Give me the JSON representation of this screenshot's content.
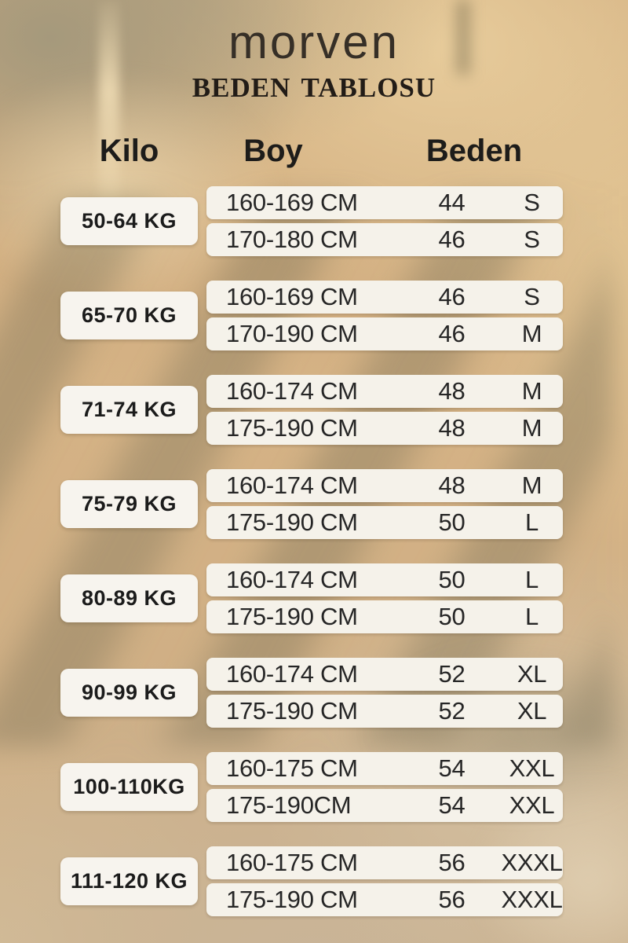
{
  "brand": "morven",
  "title": "BEDEN TABLOSU",
  "columns": {
    "kilo": "Kilo",
    "boy": "Boy",
    "beden": "Beden"
  },
  "table": {
    "groups": [
      {
        "kilo": "50-64 KG",
        "rows": [
          {
            "boy": "160-169 CM",
            "num": "44",
            "size": "S"
          },
          {
            "boy": "170-180 CM",
            "num": "46",
            "size": "S"
          }
        ]
      },
      {
        "kilo": "65-70 KG",
        "rows": [
          {
            "boy": "160-169 CM",
            "num": "46",
            "size": "S"
          },
          {
            "boy": "170-190 CM",
            "num": "46",
            "size": "M"
          }
        ]
      },
      {
        "kilo": "71-74 KG",
        "rows": [
          {
            "boy": "160-174 CM",
            "num": "48",
            "size": "M"
          },
          {
            "boy": "175-190 CM",
            "num": "48",
            "size": "M"
          }
        ]
      },
      {
        "kilo": "75-79 KG",
        "rows": [
          {
            "boy": "160-174 CM",
            "num": "48",
            "size": "M"
          },
          {
            "boy": "175-190 CM",
            "num": "50",
            "size": "L"
          }
        ]
      },
      {
        "kilo": "80-89 KG",
        "rows": [
          {
            "boy": "160-174 CM",
            "num": "50",
            "size": "L"
          },
          {
            "boy": "175-190 CM",
            "num": "50",
            "size": "L"
          }
        ]
      },
      {
        "kilo": "90-99 KG",
        "rows": [
          {
            "boy": "160-174 CM",
            "num": "52",
            "size": "XL"
          },
          {
            "boy": "175-190 CM",
            "num": "52",
            "size": "XL"
          }
        ]
      },
      {
        "kilo": "100-110KG",
        "rows": [
          {
            "boy": "160-175 CM",
            "num": "54",
            "size": "XXL"
          },
          {
            "boy": "175-190CM",
            "num": "54",
            "size": "XXL"
          }
        ]
      },
      {
        "kilo": "111-120 KG",
        "rows": [
          {
            "boy": "160-175 CM",
            "num": "56",
            "size": "XXXL"
          },
          {
            "boy": "175-190 CM",
            "num": "56",
            "size": "XXXL"
          }
        ]
      }
    ]
  },
  "colors": {
    "background_tan": "#d5b284",
    "background_sage": "#a39878",
    "card_background": "#f5f2ea",
    "text_dark": "#222222",
    "brand_text": "#362f27"
  },
  "chart_data": {
    "type": "table",
    "title": "BEDEN TABLOSU",
    "brand": "morven",
    "columns": [
      "Kilo",
      "Boy",
      "Beden (number)",
      "Beden (letter)"
    ],
    "rows": [
      [
        "50-64 KG",
        "160-169 CM",
        44,
        "S"
      ],
      [
        "50-64 KG",
        "170-180 CM",
        46,
        "S"
      ],
      [
        "65-70 KG",
        "160-169 CM",
        46,
        "S"
      ],
      [
        "65-70 KG",
        "170-190 CM",
        46,
        "M"
      ],
      [
        "71-74 KG",
        "160-174 CM",
        48,
        "M"
      ],
      [
        "71-74 KG",
        "175-190 CM",
        48,
        "M"
      ],
      [
        "75-79 KG",
        "160-174 CM",
        48,
        "M"
      ],
      [
        "75-79 KG",
        "175-190 CM",
        50,
        "L"
      ],
      [
        "80-89 KG",
        "160-174 CM",
        50,
        "L"
      ],
      [
        "80-89 KG",
        "175-190 CM",
        50,
        "L"
      ],
      [
        "90-99 KG",
        "160-174 CM",
        52,
        "XL"
      ],
      [
        "90-99 KG",
        "175-190 CM",
        52,
        "XL"
      ],
      [
        "100-110KG",
        "160-175 CM",
        54,
        "XXL"
      ],
      [
        "100-110KG",
        "175-190CM",
        54,
        "XXL"
      ],
      [
        "111-120 KG",
        "160-175 CM",
        56,
        "XXXL"
      ],
      [
        "111-120 KG",
        "175-190 CM",
        56,
        "XXXL"
      ]
    ]
  }
}
